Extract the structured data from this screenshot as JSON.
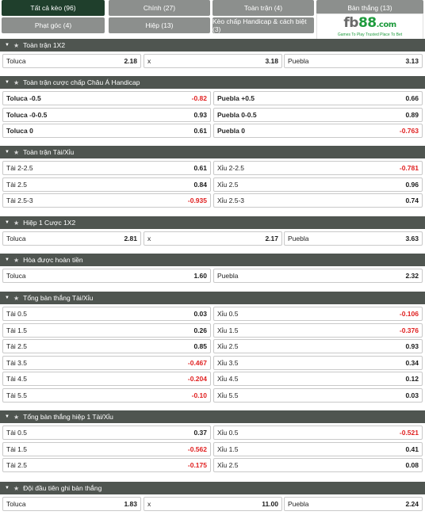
{
  "tabs": [
    {
      "label": "Tất cả kèo (96)",
      "active": true
    },
    {
      "label": "Chính (27)",
      "active": false
    },
    {
      "label": "Toàn trận (4)",
      "active": false
    },
    {
      "label": "Bàn thắng (13)",
      "active": false
    },
    {
      "label": "Phạt góc (4)",
      "active": false
    },
    {
      "label": "Hiệp (13)",
      "active": false
    },
    {
      "label": "Kèo chấp Handicap & cách biệt (3)",
      "active": false
    }
  ],
  "logo": {
    "word_main": "fb",
    "word_accent": "88",
    "word_suffix": ".com",
    "tagline": "Games To Play  Trusted Place To Bet"
  },
  "sections": [
    {
      "title": "Toàn trận 1X2",
      "cols": 3,
      "rows": [
        [
          {
            "label": "Toluca",
            "value": "2.18"
          },
          {
            "label": "x",
            "value": "3.18"
          },
          {
            "label": "Puebla",
            "value": "3.13"
          }
        ]
      ]
    },
    {
      "title": "Toàn trận cược chấp Châu Á Handicap",
      "cols": 2,
      "rows": [
        [
          {
            "label": "Toluca -0.5",
            "value": "-0.82",
            "bold_label": true
          },
          {
            "label": "Puebla +0.5",
            "value": "0.66",
            "bold_label": true
          }
        ],
        [
          {
            "label": "Toluca -0-0.5",
            "value": "0.93",
            "bold_label": true
          },
          {
            "label": "Puebla 0-0.5",
            "value": "0.89",
            "bold_label": true
          }
        ],
        [
          {
            "label": "Toluca 0",
            "value": "0.61",
            "bold_label": true
          },
          {
            "label": "Puebla 0",
            "value": "-0.763",
            "bold_label": true
          }
        ]
      ]
    },
    {
      "title": "Toàn trận Tài/Xỉu",
      "cols": 2,
      "rows": [
        [
          {
            "label": "Tài 2-2.5",
            "value": "0.61"
          },
          {
            "label": "Xỉu 2-2.5",
            "value": "-0.781"
          }
        ],
        [
          {
            "label": "Tài 2.5",
            "value": "0.84"
          },
          {
            "label": "Xỉu 2.5",
            "value": "0.96"
          }
        ],
        [
          {
            "label": "Tài 2.5-3",
            "value": "-0.935"
          },
          {
            "label": "Xỉu 2.5-3",
            "value": "0.74"
          }
        ]
      ]
    },
    {
      "title": "Hiệp 1 Cược 1X2",
      "cols": 3,
      "rows": [
        [
          {
            "label": "Toluca",
            "value": "2.81"
          },
          {
            "label": "x",
            "value": "2.17"
          },
          {
            "label": "Puebla",
            "value": "3.63"
          }
        ]
      ]
    },
    {
      "title": "Hòa được hoàn tiền",
      "cols": 2,
      "rows": [
        [
          {
            "label": "Toluca",
            "value": "1.60"
          },
          {
            "label": "Puebla",
            "value": "2.32"
          }
        ]
      ]
    },
    {
      "title": "Tổng bàn thắng Tài/Xỉu",
      "cols": 2,
      "rows": [
        [
          {
            "label": "Tài 0.5",
            "value": "0.03"
          },
          {
            "label": "Xỉu 0.5",
            "value": "-0.106"
          }
        ],
        [
          {
            "label": "Tài 1.5",
            "value": "0.26"
          },
          {
            "label": "Xỉu 1.5",
            "value": "-0.376"
          }
        ],
        [
          {
            "label": "Tài 2.5",
            "value": "0.85"
          },
          {
            "label": "Xỉu 2.5",
            "value": "0.93"
          }
        ],
        [
          {
            "label": "Tài 3.5",
            "value": "-0.467"
          },
          {
            "label": "Xỉu 3.5",
            "value": "0.34"
          }
        ],
        [
          {
            "label": "Tài 4.5",
            "value": "-0.204"
          },
          {
            "label": "Xỉu 4.5",
            "value": "0.12"
          }
        ],
        [
          {
            "label": "Tài 5.5",
            "value": "-0.10"
          },
          {
            "label": "Xỉu 5.5",
            "value": "0.03"
          }
        ]
      ]
    },
    {
      "title": "Tổng bàn thắng hiệp 1 Tài/Xỉu",
      "cols": 2,
      "rows": [
        [
          {
            "label": "Tài 0.5",
            "value": "0.37"
          },
          {
            "label": "Xỉu 0.5",
            "value": "-0.521"
          }
        ],
        [
          {
            "label": "Tài 1.5",
            "value": "-0.562"
          },
          {
            "label": "Xỉu 1.5",
            "value": "0.41"
          }
        ],
        [
          {
            "label": "Tài 2.5",
            "value": "-0.175"
          },
          {
            "label": "Xỉu 2.5",
            "value": "0.08"
          }
        ]
      ]
    },
    {
      "title": "Đội đầu tiên ghi bàn thắng",
      "cols": 3,
      "rows": [
        [
          {
            "label": "Toluca",
            "value": "1.83"
          },
          {
            "label": "x",
            "value": "11.00"
          },
          {
            "label": "Puebla",
            "value": "2.24"
          }
        ]
      ]
    }
  ],
  "colors": {
    "header_bg": "#4f5550",
    "tab_bg": "#8c8f8d",
    "tab_active": "#1f3f2c",
    "negative": "#e02020",
    "logo_green": "#1e9b3d"
  },
  "icons": {
    "collapse": "chevron-down-icon",
    "favorite": "star-icon"
  }
}
